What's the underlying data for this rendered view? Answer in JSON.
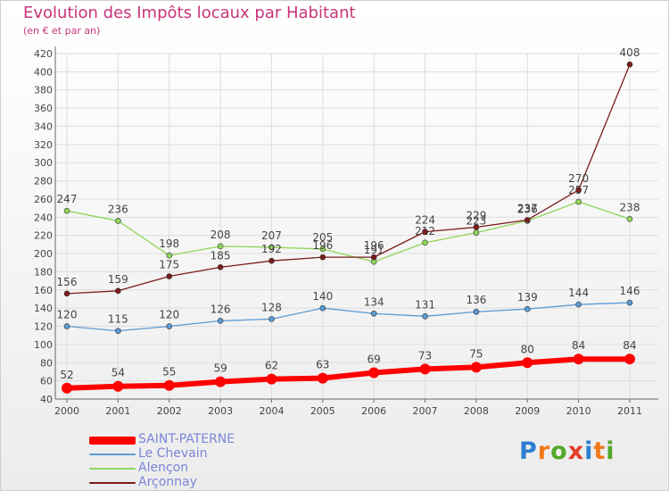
{
  "title": "Evolution des Impôts locaux par Habitant",
  "subtitle": "(en € et par an)",
  "logo": {
    "text": "Proxiti",
    "letters": [
      "P",
      "r",
      "o",
      "x",
      "i",
      "t",
      "i"
    ],
    "colors": [
      "#2d7fd4",
      "#f07a1a",
      "#52a82a",
      "#e23f28",
      "#2d7fd4",
      "#f07a1a",
      "#52a82a"
    ]
  },
  "chart_data": {
    "type": "line",
    "title": "Evolution des Impôts locaux par Habitant",
    "subtitle": "(en € et par an)",
    "x": [
      "2000",
      "2001",
      "2002",
      "2003",
      "2004",
      "2005",
      "2006",
      "2007",
      "2008",
      "2009",
      "2010",
      "2011"
    ],
    "ylim": [
      40,
      420
    ],
    "yticks": [
      40,
      60,
      80,
      100,
      120,
      140,
      160,
      180,
      200,
      220,
      240,
      260,
      280,
      300,
      320,
      340,
      360,
      380,
      400,
      420
    ],
    "grid": true,
    "legend_position": "bottom-left",
    "series": [
      {
        "name": "SAINT-PATERNE",
        "color": "#ff0000",
        "values": [
          52,
          54,
          55,
          59,
          62,
          63,
          69,
          73,
          75,
          80,
          84,
          84
        ]
      },
      {
        "name": "Le Chevain",
        "color": "#5b9bd5",
        "values": [
          120,
          115,
          120,
          126,
          128,
          140,
          134,
          131,
          136,
          139,
          144,
          146
        ]
      },
      {
        "name": "Alençon",
        "color": "#8fd65a",
        "values": [
          247,
          236,
          198,
          208,
          207,
          205,
          191,
          212,
          223,
          236,
          257,
          238
        ]
      },
      {
        "name": "Arçonnay",
        "color": "#7b1c1c",
        "values": [
          156,
          159,
          175,
          185,
          192,
          196,
          196,
          224,
          229,
          237,
          270,
          408
        ]
      }
    ]
  }
}
